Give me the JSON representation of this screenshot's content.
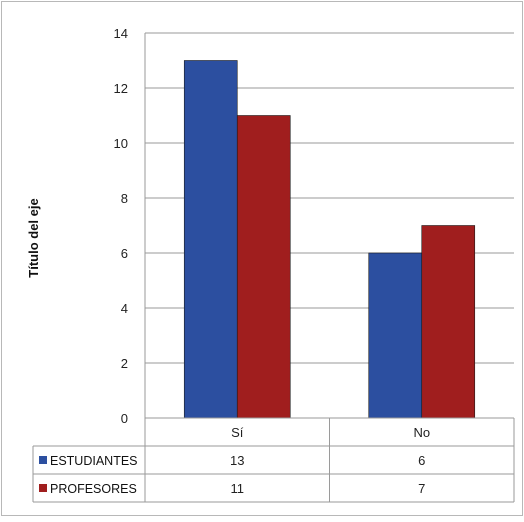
{
  "chart_data": {
    "type": "bar",
    "title": "",
    "ylabel": "Título del eje",
    "xlabel": "",
    "categories": [
      "Sí",
      "No"
    ],
    "series": [
      {
        "name": "ESTUDIANTES",
        "values": [
          13,
          6
        ],
        "color": "#2c4fa0"
      },
      {
        "name": "PROFESORES",
        "values": [
          11,
          7
        ],
        "color": "#a01e1e"
      }
    ],
    "ylim": [
      0,
      14
    ],
    "yticks": [
      0,
      2,
      4,
      6,
      8,
      10,
      12,
      14
    ],
    "grid": true,
    "legend": "data-table-left"
  }
}
